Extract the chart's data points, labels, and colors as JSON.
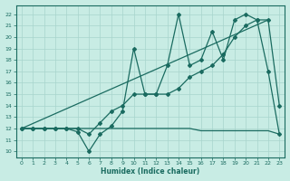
{
  "xlabel": "Humidex (Indice chaleur)",
  "bg_color": "#c8ece4",
  "grid_color": "#a8d4cc",
  "line_color": "#1a6b60",
  "xlim": [
    -0.5,
    23.5
  ],
  "ylim": [
    9.5,
    22.8
  ],
  "yticks": [
    10,
    11,
    12,
    13,
    14,
    15,
    16,
    17,
    18,
    19,
    20,
    21,
    22
  ],
  "xticks": [
    0,
    1,
    2,
    3,
    4,
    5,
    6,
    7,
    8,
    9,
    10,
    11,
    12,
    13,
    14,
    15,
    16,
    17,
    18,
    19,
    20,
    21,
    22,
    23
  ],
  "line1_x": [
    0,
    1,
    2,
    3,
    4,
    5,
    6,
    7,
    8,
    9,
    10,
    11,
    12,
    13,
    14,
    15,
    16,
    17,
    18,
    19,
    20,
    21,
    22,
    23
  ],
  "line1_y": [
    12,
    12,
    12,
    12,
    12,
    11.7,
    10.0,
    11.5,
    12.2,
    13.5,
    19.0,
    15.0,
    15.0,
    17.5,
    22.0,
    17.5,
    18.0,
    20.5,
    18.0,
    21.5,
    22.0,
    21.5,
    17.0,
    11.5
  ],
  "line2_x": [
    0,
    1,
    2,
    3,
    4,
    5,
    6,
    7,
    8,
    9,
    10,
    11,
    12,
    13,
    14,
    15,
    16,
    17,
    18,
    19,
    20,
    21,
    22,
    23
  ],
  "line2_y": [
    12,
    12,
    12,
    12,
    12,
    12,
    11.5,
    12.5,
    13.5,
    14.0,
    15.0,
    15.0,
    15.0,
    15.0,
    15.5,
    16.5,
    17.0,
    17.5,
    18.5,
    20.0,
    21.0,
    21.5,
    21.5,
    14.0
  ],
  "line3_x": [
    0,
    1,
    2,
    3,
    4,
    5,
    6,
    7,
    8,
    9,
    10,
    11,
    12,
    13,
    14,
    15,
    16,
    17,
    18,
    19,
    20,
    21,
    22,
    23
  ],
  "line3_y": [
    12,
    12,
    12,
    12,
    12,
    12,
    12,
    12,
    12,
    12,
    12,
    12,
    12,
    12,
    12,
    12,
    11.8,
    11.8,
    11.8,
    11.8,
    11.8,
    11.8,
    11.8,
    11.5
  ],
  "line4_x": [
    0,
    22
  ],
  "line4_y": [
    12,
    21.5
  ]
}
